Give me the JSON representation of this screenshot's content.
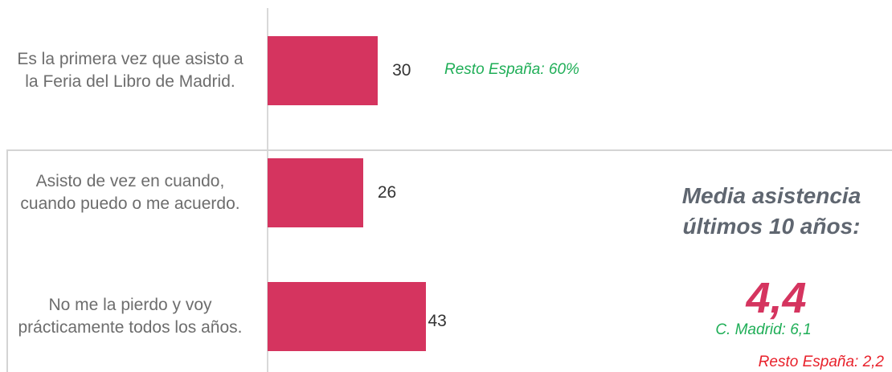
{
  "chart_data": {
    "type": "barh",
    "categories": [
      "Es la primera vez que asisto a la Feria del Libro de Madrid.",
      "Asisto de vez en cuando, cuando puedo o me acuerdo.",
      "No me la pierdo y voy prácticamente todos los años."
    ],
    "values": [
      30,
      26,
      43
    ],
    "color": "#d5345f",
    "annotations": {
      "first_note": "Resto España: 60%",
      "average_title": [
        "Media asistencia",
        "últimos 10 años:"
      ],
      "average_value": "4,4",
      "madrid": "C. Madrid: 6,1",
      "rest": "Resto España: 2,2"
    }
  }
}
